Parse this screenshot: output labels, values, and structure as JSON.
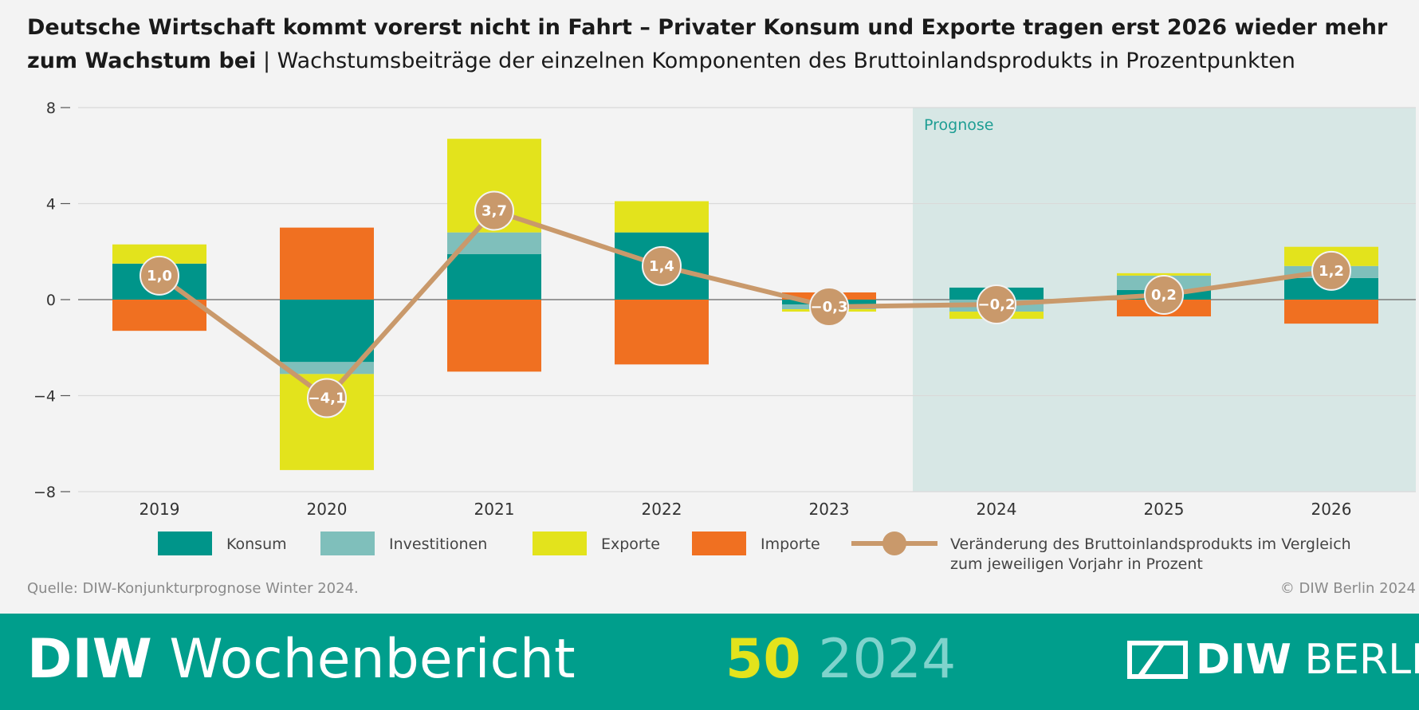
{
  "title": {
    "bold": "Deutsche Wirtschaft kommt vorerst nicht in Fahrt – Privater Konsum und Exporte tragen erst 2026 wieder mehr zum Wachstum bei",
    "separator": " | ",
    "subtitle": "Wachstumsbeiträge der einzelnen Komponenten des Bruttoinlandsprodukts in Prozentpunkten"
  },
  "source": "Quelle: DIW-Konjunkturprognose Winter 2024.",
  "copyright": "© DIW Berlin 2024",
  "footer": {
    "brand_bold": "DIW",
    "brand_rest": " Wochenbericht",
    "issue_number": "50",
    "issue_year": " 2024",
    "logo_bold": "DIW",
    "logo_rest": " BERLIN"
  },
  "colors": {
    "konsum": "#00958a",
    "investitionen": "#7fbfbb",
    "exporte": "#e3e31c",
    "importe": "#f07021",
    "line": "#c9996b",
    "prognose_bg": "#d7e7e5",
    "footer": "#009e8c"
  },
  "chart_data": {
    "type": "bar",
    "stacked": true,
    "categories": [
      "2019",
      "2020",
      "2021",
      "2022",
      "2023",
      "2024",
      "2025",
      "2026"
    ],
    "ylim": [
      -8,
      8
    ],
    "yticks": [
      8,
      4,
      0,
      -4,
      -8
    ],
    "ytick_labels": [
      "8",
      "4",
      "0",
      "−4",
      "−8"
    ],
    "grid": true,
    "forecast_from": "2024",
    "forecast_label": "Prognose",
    "series": [
      {
        "name": "Konsum",
        "key": "konsum",
        "values": [
          1.5,
          -2.6,
          1.9,
          2.8,
          -0.2,
          0.5,
          0.4,
          0.9
        ]
      },
      {
        "name": "Investitionen",
        "key": "investitionen",
        "values": [
          0.0,
          -0.5,
          0.9,
          0.0,
          -0.2,
          -0.5,
          0.6,
          0.5
        ]
      },
      {
        "name": "Exporte",
        "key": "exporte",
        "values": [
          0.8,
          -4.0,
          3.9,
          1.3,
          -0.1,
          -0.3,
          0.1,
          0.8
        ]
      },
      {
        "name": "Importe",
        "key": "importe",
        "values": [
          -1.3,
          3.0,
          -3.0,
          -2.7,
          0.3,
          0.0,
          -0.7,
          -1.0
        ]
      }
    ],
    "line": {
      "name": "Veränderung des Bruttoinlandsprodukts im Vergleich zum jeweiligen Vorjahr in Prozent",
      "name_line1": "Veränderung des Bruttoinlandsprodukts im Vergleich",
      "name_line2": "zum jeweiligen Vorjahr in Prozent",
      "values": [
        1.0,
        -4.1,
        3.7,
        1.4,
        -0.3,
        -0.2,
        0.2,
        1.2
      ],
      "labels": [
        "1,0",
        "−4,1",
        "3,7",
        "1,4",
        "−0,3",
        "−0,2",
        "0,2",
        "1,2"
      ]
    }
  }
}
